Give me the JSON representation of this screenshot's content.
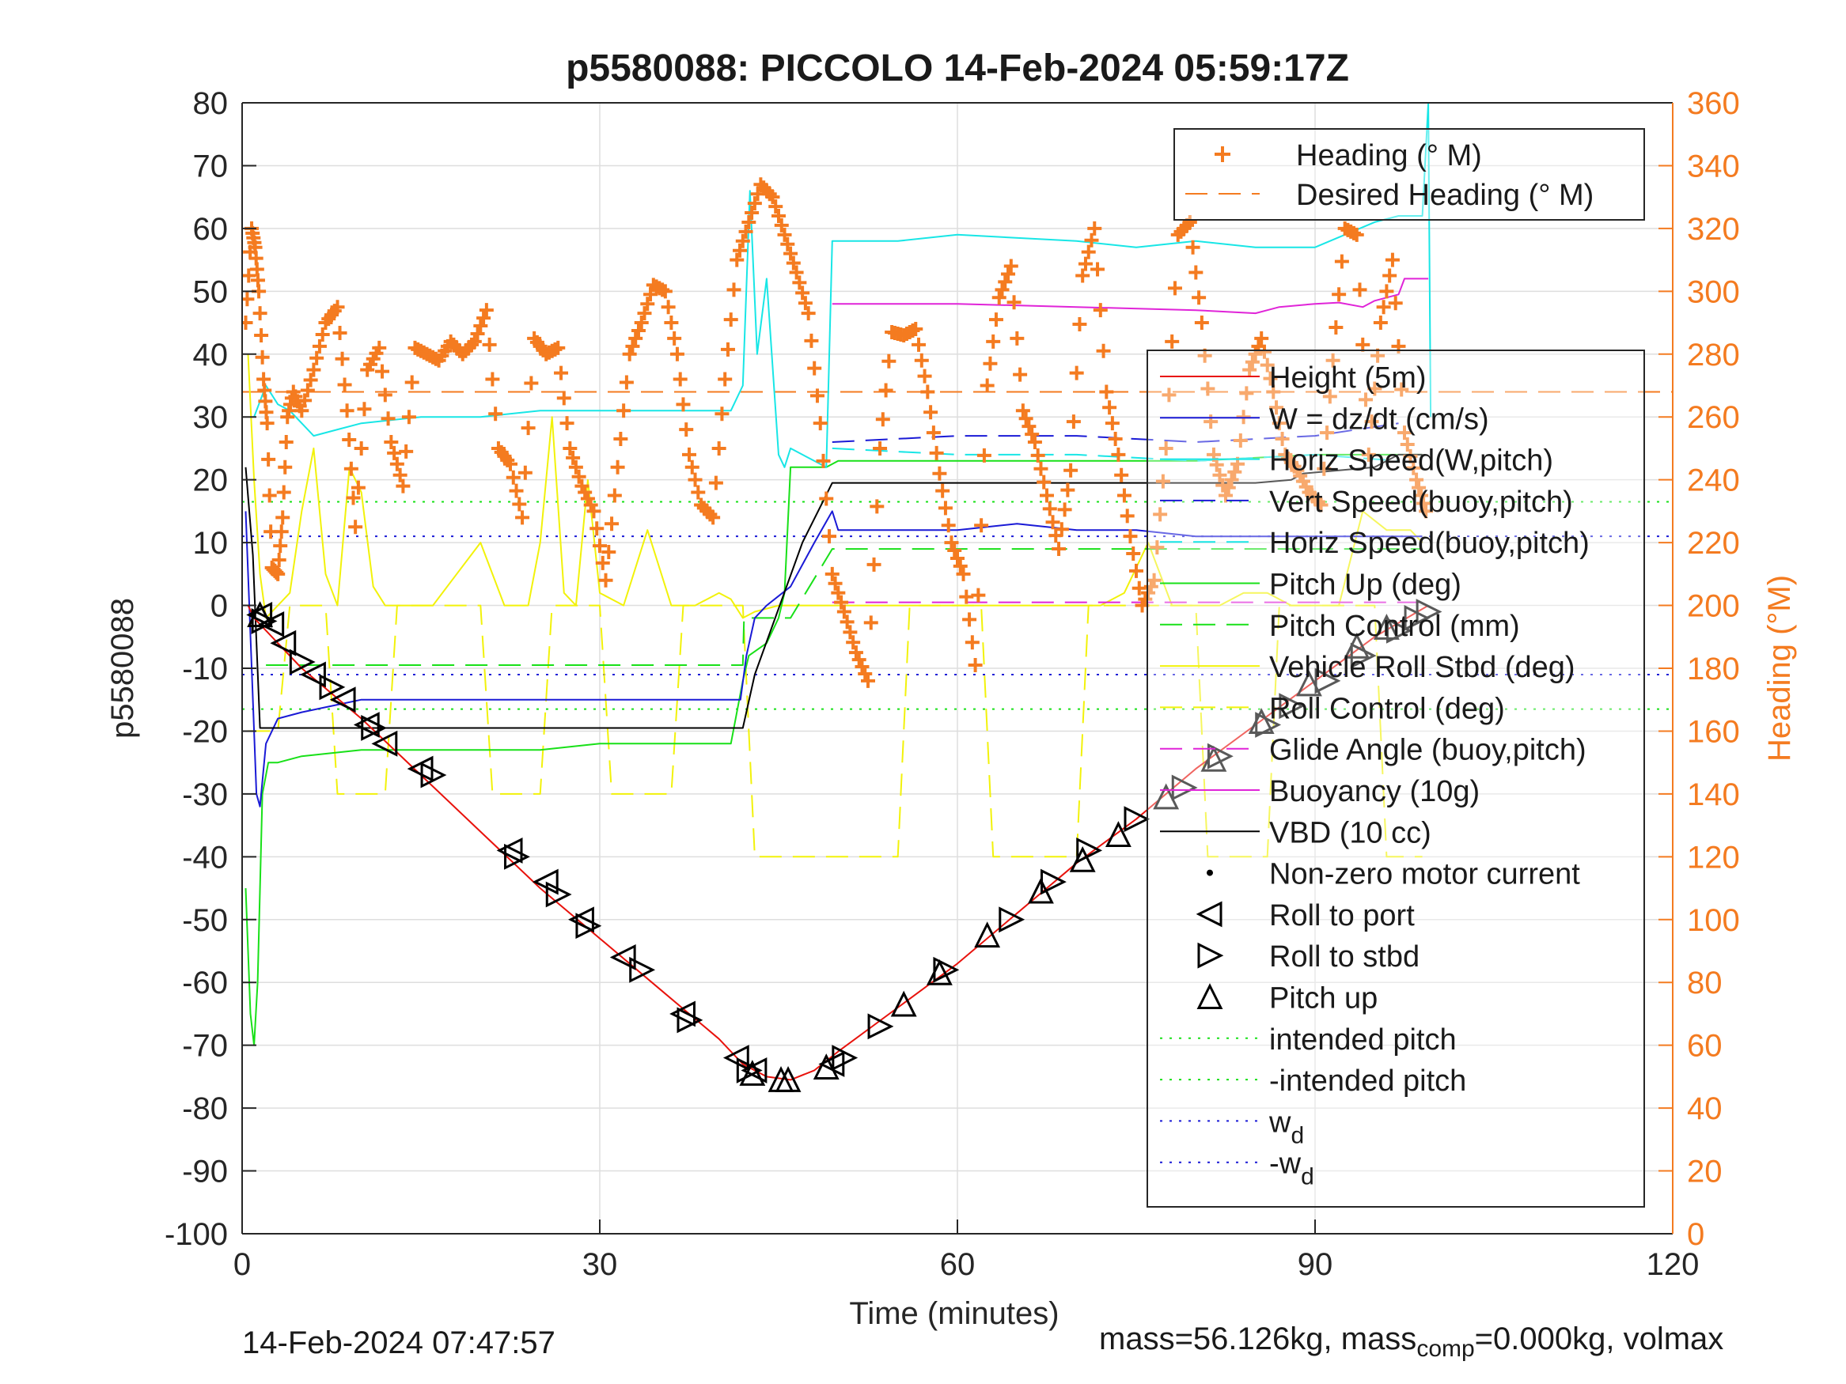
{
  "chart_data": {
    "type": "line",
    "title": "p5580088: PICCOLO 14-Feb-2024 05:59:17Z",
    "xlabel": "Time (minutes)",
    "ylabel_left": "p5580088",
    "ylabel_right": "Heading (°M)",
    "xlim": [
      0,
      120
    ],
    "ylim_left": [
      -100,
      80
    ],
    "ylim_right": [
      0,
      360
    ],
    "x_ticks": [
      "0",
      "30",
      "60",
      "90",
      "120"
    ],
    "y_ticks_left": [
      "80",
      "70",
      "60",
      "50",
      "40",
      "30",
      "20",
      "10",
      "0",
      "-10",
      "-20",
      "-30",
      "-40",
      "-50",
      "-60",
      "-70",
      "-80",
      "-90",
      "-100"
    ],
    "y_ticks_right": [
      "360",
      "340",
      "320",
      "300",
      "280",
      "260",
      "240",
      "220",
      "200",
      "180",
      "160",
      "140",
      "120",
      "100",
      "80",
      "60",
      "40",
      "20",
      "0"
    ],
    "grid": true,
    "colors": {
      "heading": "#f47b20",
      "height": "#e8120c",
      "w": "#1a1ad6",
      "horiz_speed_w": "#18e6e6",
      "pitch_up": "#18e018",
      "roll": "#f2f20a",
      "glide": "#e024d8",
      "vbd": "#000000",
      "axis": "#262626",
      "grid": "#dedede"
    },
    "legend_top_right": [
      {
        "label": "Heading (° M)",
        "style": "plus",
        "color": "#f47b20"
      },
      {
        "label": "Desired Heading (° M)",
        "style": "dash",
        "color": "#f47b20"
      }
    ],
    "legend_main": [
      {
        "label": "Height (5m)",
        "style": "solid",
        "color": "#e8120c"
      },
      {
        "label": "W = dz/dt (cm/s)",
        "style": "solid",
        "color": "#1a1ad6"
      },
      {
        "label": "Horiz Speed(W,pitch)",
        "style": "solid",
        "color": "#18e6e6"
      },
      {
        "label": "Vert Speed(buoy,pitch)",
        "style": "dash",
        "color": "#1a1ad6"
      },
      {
        "label": "Horiz Speed(buoy,pitch)",
        "style": "dash",
        "color": "#18e6e6"
      },
      {
        "label": "Pitch Up (deg)",
        "style": "solid",
        "color": "#18e018"
      },
      {
        "label": "Pitch Control (mm)",
        "style": "dash",
        "color": "#18e018"
      },
      {
        "label": "Vehicle Roll Stbd (deg)",
        "style": "solid",
        "color": "#f2f20a"
      },
      {
        "label": "Roll Control (deg)",
        "style": "dash",
        "color": "#f2f20a"
      },
      {
        "label": "Glide Angle (buoy,pitch)",
        "style": "dash",
        "color": "#e024d8"
      },
      {
        "label": "Buoyancy (10g)",
        "style": "solid",
        "color": "#e024d8"
      },
      {
        "label": "VBD (10 cc)",
        "style": "solid",
        "color": "#000000"
      },
      {
        "label": "Non-zero motor current",
        "style": "dot",
        "color": "#000000"
      },
      {
        "label": "Roll to port",
        "style": "tri-left",
        "color": "#000000"
      },
      {
        "label": "Roll to stbd",
        "style": "tri-right",
        "color": "#000000"
      },
      {
        "label": "Pitch up",
        "style": "tri-up",
        "color": "#000000"
      },
      {
        "label": "intended pitch",
        "style": "dot-line",
        "color": "#18e018"
      },
      {
        "label": "-intended pitch",
        "style": "dot-line",
        "color": "#18e018"
      },
      {
        "label": "w",
        "sub": "d",
        "style": "dot-line",
        "color": "#1a1ad6"
      },
      {
        "label": "-w",
        "sub": "d",
        "style": "dot-line",
        "color": "#1a1ad6"
      }
    ],
    "reference_lines": {
      "desired_heading": 268,
      "intended_pitch": 16.5,
      "neg_intended_pitch": -16.5,
      "w_d": 11,
      "neg_w_d": -11
    },
    "series": [
      {
        "name": "Height (5m)",
        "key": "height",
        "x": [
          0.5,
          1,
          2,
          5,
          10,
          15,
          20,
          25,
          30,
          35,
          40,
          42,
          44,
          46,
          48,
          50,
          55,
          60,
          65,
          70,
          75,
          80,
          85,
          90,
          95,
          99.5
        ],
        "y": [
          0,
          -2,
          -4,
          -10,
          -18,
          -27,
          -36,
          -45,
          -53,
          -61,
          -69,
          -73,
          -75,
          -75.5,
          -74,
          -71,
          -64,
          -57,
          -49,
          -41,
          -34,
          -26,
          -19,
          -12,
          -5,
          0
        ]
      },
      {
        "name": "W = dz/dt (cm/s)",
        "key": "w",
        "x": [
          0.3,
          0.8,
          1.2,
          1.5,
          2,
          3,
          5,
          10,
          15,
          20,
          25,
          30,
          35,
          40,
          41.8,
          42.3,
          43,
          44,
          46,
          48,
          49.5,
          50,
          55,
          60,
          65,
          70,
          75,
          80,
          85,
          90,
          95,
          99
        ],
        "y": [
          15,
          -10,
          -30,
          -32,
          -22,
          -18,
          -17,
          -15,
          -15,
          -15,
          -15,
          -15,
          -15,
          -15,
          -15,
          -8,
          -2,
          0,
          3,
          10,
          15,
          12,
          12,
          12,
          13,
          12,
          12,
          11,
          11,
          11,
          11,
          11
        ]
      },
      {
        "name": "Vert Speed(buoy,pitch)",
        "key": "vert_speed_buoy",
        "x": [
          49.5,
          60,
          70,
          80,
          90,
          97
        ],
        "y": [
          26,
          27,
          27,
          26,
          27,
          29
        ]
      },
      {
        "name": "Horiz Speed(W,pitch)",
        "key": "horiz_speed_w",
        "x": [
          1,
          2,
          3,
          4,
          6,
          8,
          10,
          15,
          20,
          25,
          30,
          35,
          41,
          42,
          42.6,
          43.2,
          44,
          45,
          45.5,
          46,
          49,
          49.5,
          55,
          60,
          70,
          75,
          80,
          85,
          90,
          95,
          97,
          99,
          99.5,
          99.7
        ],
        "y": [
          30,
          35,
          32,
          31,
          27,
          28,
          29,
          30,
          30,
          31,
          31,
          31,
          31,
          35,
          66,
          40,
          52,
          24,
          22,
          25,
          22,
          58,
          58,
          59,
          58,
          57,
          58,
          57,
          57,
          61,
          62,
          62,
          80,
          30
        ]
      },
      {
        "name": "Horiz Speed(buoy,pitch)",
        "key": "horiz_speed_buoy",
        "x": [
          49.5,
          60,
          70,
          80,
          90,
          97
        ],
        "y": [
          25,
          24,
          24,
          23,
          24,
          23
        ]
      },
      {
        "name": "Pitch Up (deg)",
        "key": "pitch_up",
        "x": [
          0.3,
          0.7,
          1,
          1.3,
          1.7,
          2.2,
          3,
          5,
          10,
          15,
          20,
          25,
          30,
          35,
          41,
          42,
          42.5,
          44,
          45,
          45.5,
          46,
          49,
          50,
          55,
          60,
          70,
          80,
          90,
          97,
          99
        ],
        "y": [
          -45,
          -65,
          -70,
          -60,
          -30,
          -25,
          -25,
          -24,
          -23,
          -23,
          -23,
          -23,
          -22,
          -22,
          -22,
          -12,
          -8,
          -6,
          -2,
          2,
          22,
          22,
          23,
          23,
          23,
          23,
          23,
          24,
          24,
          24
        ]
      },
      {
        "name": "Pitch Control (mm)",
        "key": "pitch_control",
        "x": [
          2,
          42,
          42.1,
          46,
          49.5,
          99
        ],
        "y": [
          -9.5,
          -9.5,
          -2,
          -2,
          9,
          9
        ]
      },
      {
        "name": "Vehicle Roll Stbd (deg)",
        "key": "roll",
        "x": [
          0.5,
          1,
          1.5,
          2,
          3,
          4,
          5,
          6,
          7,
          8,
          9,
          10,
          11,
          12,
          14,
          16,
          18,
          20,
          22,
          23,
          24,
          25,
          26,
          27,
          28,
          29,
          30,
          32,
          34,
          36,
          38,
          40,
          41,
          42,
          43,
          45,
          47,
          49,
          50,
          52,
          54,
          56,
          58,
          60,
          62,
          64,
          66,
          68,
          70,
          72,
          74,
          76,
          78,
          80,
          82,
          84,
          86,
          88,
          90,
          92,
          94,
          96,
          98,
          99
        ],
        "y": [
          40,
          20,
          5,
          -2,
          0,
          2,
          15,
          25,
          5,
          0,
          22,
          18,
          3,
          0,
          0,
          0,
          5,
          10,
          0,
          0,
          0,
          10,
          30,
          2,
          0,
          20,
          2,
          0,
          12,
          0,
          0,
          2,
          1,
          -2,
          -1,
          0,
          0,
          0,
          0,
          0,
          0,
          0,
          0,
          0,
          0,
          0,
          0,
          0,
          0,
          0,
          2,
          10,
          0,
          0,
          0,
          2,
          2,
          0,
          0,
          0,
          15,
          12,
          12,
          10
        ]
      },
      {
        "name": "Roll Control (deg)",
        "key": "roll_control",
        "x": [
          0.5,
          3,
          4,
          7,
          8,
          12,
          13,
          20,
          21,
          25,
          26,
          30,
          31,
          36,
          37,
          42,
          43,
          55,
          56,
          62,
          63,
          70,
          71,
          80,
          81,
          86,
          87,
          95,
          96,
          99
        ],
        "y": [
          -20,
          -20,
          0,
          0,
          -30,
          -30,
          0,
          0,
          -30,
          -30,
          0,
          0,
          -30,
          -30,
          0,
          0,
          -40,
          -40,
          0,
          0,
          -40,
          -40,
          0,
          0,
          -40,
          -40,
          0,
          0,
          -40,
          -40
        ]
      },
      {
        "name": "Glide Angle (buoy,pitch)",
        "key": "glide_angle",
        "x": [
          49.5,
          60,
          70,
          80,
          90,
          99
        ],
        "y": [
          0.5,
          0.5,
          0.5,
          0.5,
          0.5,
          0.5
        ]
      },
      {
        "name": "Buoyancy (10g)",
        "key": "buoyancy",
        "x": [
          49.5,
          60,
          70,
          80,
          85,
          86,
          87,
          90,
          92,
          94,
          95,
          96,
          97,
          97.5,
          98,
          99.5
        ],
        "y": [
          48,
          48,
          47.5,
          47,
          46.5,
          47,
          47.5,
          48,
          48.2,
          47.5,
          48.5,
          49,
          49.5,
          52,
          52,
          52
        ]
      },
      {
        "name": "VBD (10 cc)",
        "key": "vbd",
        "x": [
          0.3,
          0.9,
          1.5,
          5,
          10,
          20,
          30,
          42,
          43,
          47,
          49.5,
          60,
          70,
          80,
          85,
          88,
          89,
          92,
          95,
          97,
          99
        ],
        "y": [
          22,
          8,
          -19.5,
          -19.5,
          -19.5,
          -19.5,
          -19.5,
          -19.5,
          -11,
          10,
          19.5,
          19.5,
          19.5,
          19.5,
          19.5,
          20,
          21,
          21.5,
          22,
          24,
          24
        ]
      },
      {
        "name": "Heading (° M)",
        "key": "heading",
        "axis": "right",
        "x": [
          0.3,
          0.8,
          1.1,
          1.4,
          1.8,
          2.1,
          2.5,
          3,
          3.4,
          3.8,
          4.3,
          5,
          6,
          7,
          8,
          8.8,
          9.5,
          10.5,
          11.5,
          12.5,
          13.5,
          14.5,
          15.5,
          16.5,
          17.5,
          18.5,
          19.5,
          20.5,
          21.5,
          22.5,
          23.5,
          24.5,
          25.5,
          26.5,
          27.5,
          28.5,
          29.5,
          30.5,
          31.5,
          32.5,
          33.5,
          34.5,
          35.5,
          36.5,
          37.5,
          38.5,
          39.5,
          40.5,
          41.5,
          42.5,
          43.5,
          44.5,
          45.5,
          46.5,
          47.5,
          48.5,
          49.5,
          50.5,
          51.5,
          52.5,
          53.5,
          54.5,
          55.5,
          56.5,
          57.5,
          58.5,
          59.5,
          60.5,
          61.5,
          62.5,
          63.5,
          64.5,
          65.5,
          66.5,
          67.5,
          68.5,
          69.5,
          70.5,
          71.5,
          72.5,
          73.5,
          74.5,
          75.5,
          76.5,
          77.5,
          78.5,
          79.5,
          80.5,
          81.5,
          82.5,
          83.5,
          84.5,
          85.5,
          86.5,
          87.5,
          88.5,
          89.5,
          90.5,
          91.5,
          92.5,
          93.5,
          94.5,
          95.5,
          96.5,
          97.5,
          98.5,
          99.3
        ],
        "y": [
          290,
          320,
          314,
          300,
          272,
          258,
          212,
          210,
          228,
          260,
          268,
          262,
          275,
          290,
          295,
          262,
          225,
          275,
          282,
          252,
          238,
          282,
          280,
          278,
          284,
          280,
          284,
          294,
          250,
          245,
          228,
          285,
          280,
          282,
          250,
          238,
          230,
          208,
          244,
          280,
          290,
          302,
          300,
          280,
          248,
          232,
          228,
          272,
          310,
          322,
          334,
          330,
          318,
          306,
          293,
          258,
          210,
          198,
          185,
          176,
          250,
          287,
          286,
          288,
          268,
          242,
          220,
          210,
          181,
          270,
          298,
          308,
          262,
          252,
          235,
          218,
          243,
          305,
          320,
          268,
          248,
          222,
          200,
          208,
          250,
          318,
          322,
          290,
          248,
          235,
          245,
          275,
          285,
          268,
          248,
          243,
          236,
          232,
          278,
          320,
          318,
          248,
          290,
          310,
          255,
          240,
          230
        ]
      }
    ],
    "markers": {
      "roll_to_port": {
        "x": [
          1.5,
          2.5,
          3.5,
          6,
          8.5,
          10.5,
          12,
          15,
          22.5,
          25.5,
          28.5,
          32,
          37,
          41.5,
          43,
          49.5
        ],
        "y": [
          -1.5,
          -3,
          -6,
          -11,
          -15,
          -19,
          -22,
          -26,
          -39,
          -44,
          -50,
          -56,
          -65,
          -72,
          -74,
          -73
        ]
      },
      "roll_to_stbd": {
        "x": [
          1.8,
          5,
          7.5,
          11,
          16,
          23,
          26.5,
          29,
          33.5,
          37.5,
          42.5,
          50.5,
          53.5,
          59,
          64.5,
          68,
          71,
          75,
          79,
          82,
          86,
          88,
          91,
          94,
          97,
          98.5,
          99.5
        ],
        "y": [
          -2.5,
          -9,
          -13,
          -19.5,
          -27,
          -40,
          -46,
          -51,
          -58,
          -66,
          -74,
          -72,
          -67,
          -58,
          -50,
          -44,
          -39,
          -34,
          -29,
          -24,
          -19,
          -16,
          -12,
          -8,
          -4,
          -2,
          -1
        ]
      },
      "pitch_up": {
        "x": [
          1.5,
          42.8,
          45.2,
          45.8,
          49,
          55.5,
          58.5,
          62.5,
          67,
          70.5,
          73.5,
          77.5,
          81.5,
          85.5,
          89.5,
          93.5,
          96
        ],
        "y": [
          -1.5,
          -74.5,
          -75.5,
          -75.5,
          -73.5,
          -63.5,
          -58.5,
          -52.5,
          -45.5,
          -40.5,
          -36.5,
          -30.5,
          -24.5,
          -18.5,
          -12.5,
          -6.5,
          -3.5
        ]
      }
    },
    "footer_left": "14-Feb-2024 07:47:57",
    "footer_right_parts": [
      "mass=56.126kg, mass",
      "comp",
      "=0.000kg, volmax"
    ]
  }
}
